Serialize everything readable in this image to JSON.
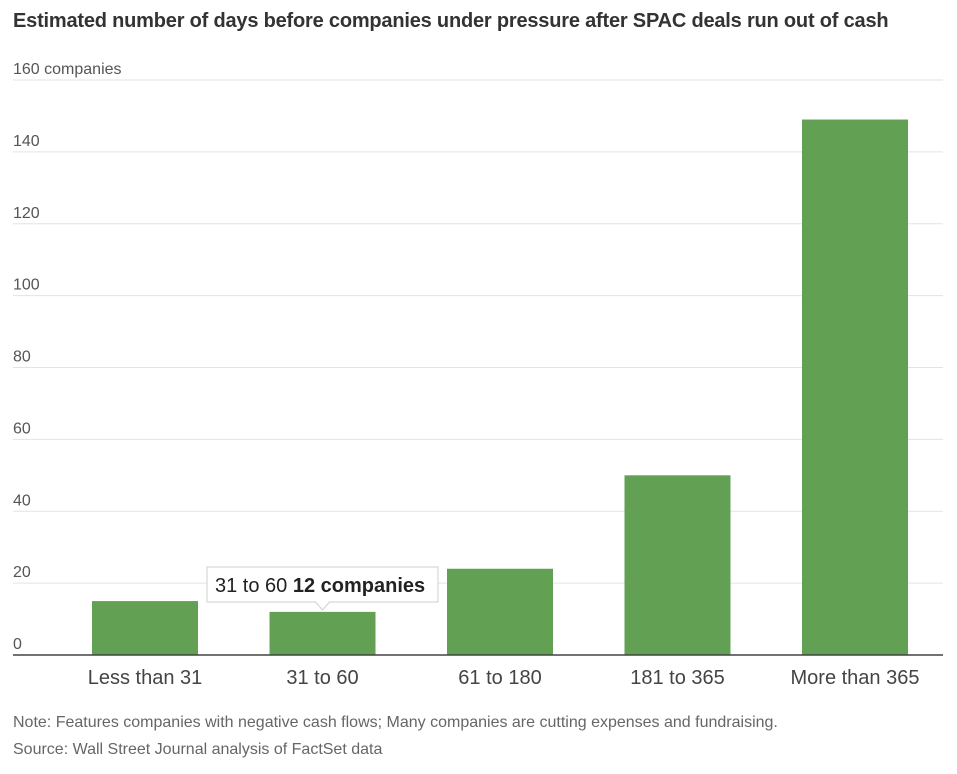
{
  "chart_data": {
    "type": "bar",
    "title": "Estimated number of days before companies under pressure after SPAC deals run out of cash",
    "ylabel": "companies",
    "categories": [
      "Less than 31",
      "31 to 60",
      "61 to 180",
      "181 to 365",
      "More than 365"
    ],
    "values": [
      15,
      12,
      24,
      50,
      149
    ],
    "ylim": [
      0,
      160
    ],
    "yticks": [
      0,
      20,
      40,
      60,
      80,
      100,
      120,
      140,
      160
    ],
    "ytick_labels": [
      "0",
      "20",
      "40",
      "60",
      "80",
      "100",
      "120",
      "140",
      "160 companies"
    ],
    "grid": true,
    "bar_color": "#62a053",
    "tooltip": {
      "category": "31 to 60",
      "value_label": "12 companies"
    },
    "note": "Note: Features companies with negative cash flows; Many companies are cutting expenses and fundraising.",
    "source": "Source: Wall Street Journal analysis of FactSet data"
  }
}
